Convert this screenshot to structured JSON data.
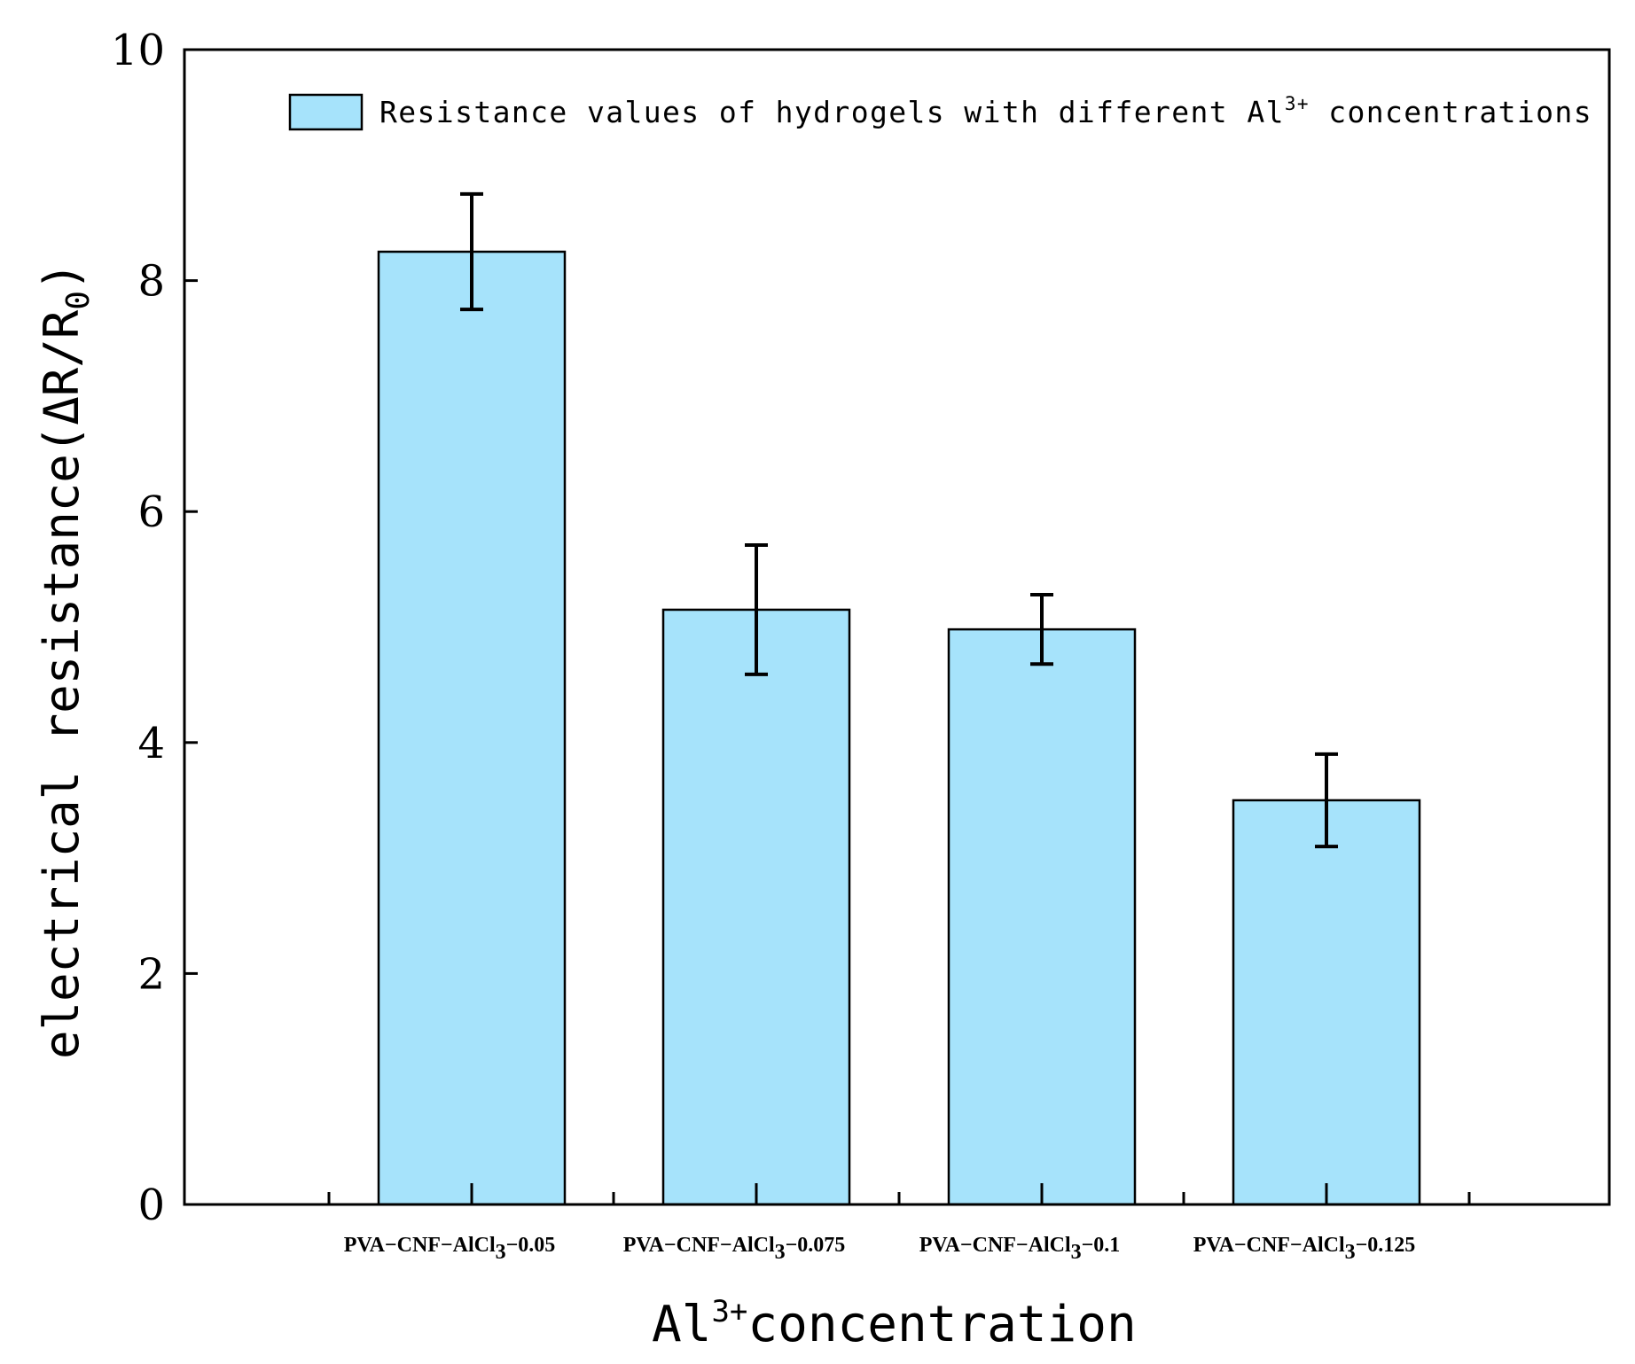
{
  "chart_data": {
    "type": "bar",
    "categories": [
      {
        "base": "PVA−CNF−AlCl",
        "sub": "3",
        "suffix": "−0.05"
      },
      {
        "base": "PVA−CNF−AlCl",
        "sub": "3",
        "suffix": "−0.075"
      },
      {
        "base": "PVA−CNF−AlCl",
        "sub": "3",
        "suffix": "−0.1"
      },
      {
        "base": "PVA−CNF−AlCl",
        "sub": "3",
        "suffix": "−0.125"
      }
    ],
    "series": [
      {
        "name": "Resistance values of hydrogels with different Al3+ concentrations",
        "values": [
          8.25,
          5.15,
          4.98,
          3.5
        ],
        "errors": [
          0.5,
          0.56,
          0.3,
          0.4
        ],
        "color": "#a6e3fb"
      }
    ],
    "legend": {
      "text_before": "Resistance values of hydrogels with different Al",
      "sup": "3+",
      "text_after": " concentrations",
      "placement": "top-right"
    },
    "xlabel": {
      "base": "Al",
      "sup": "3+",
      "rest": "concentration"
    },
    "ylabel": {
      "text": "electrical resistance(ΔR/R",
      "sub": "0",
      "close": ")"
    },
    "ylim": [
      0,
      10
    ],
    "yticks": [
      "0",
      "2",
      "4",
      "6",
      "8",
      "10"
    ],
    "grid": false
  }
}
